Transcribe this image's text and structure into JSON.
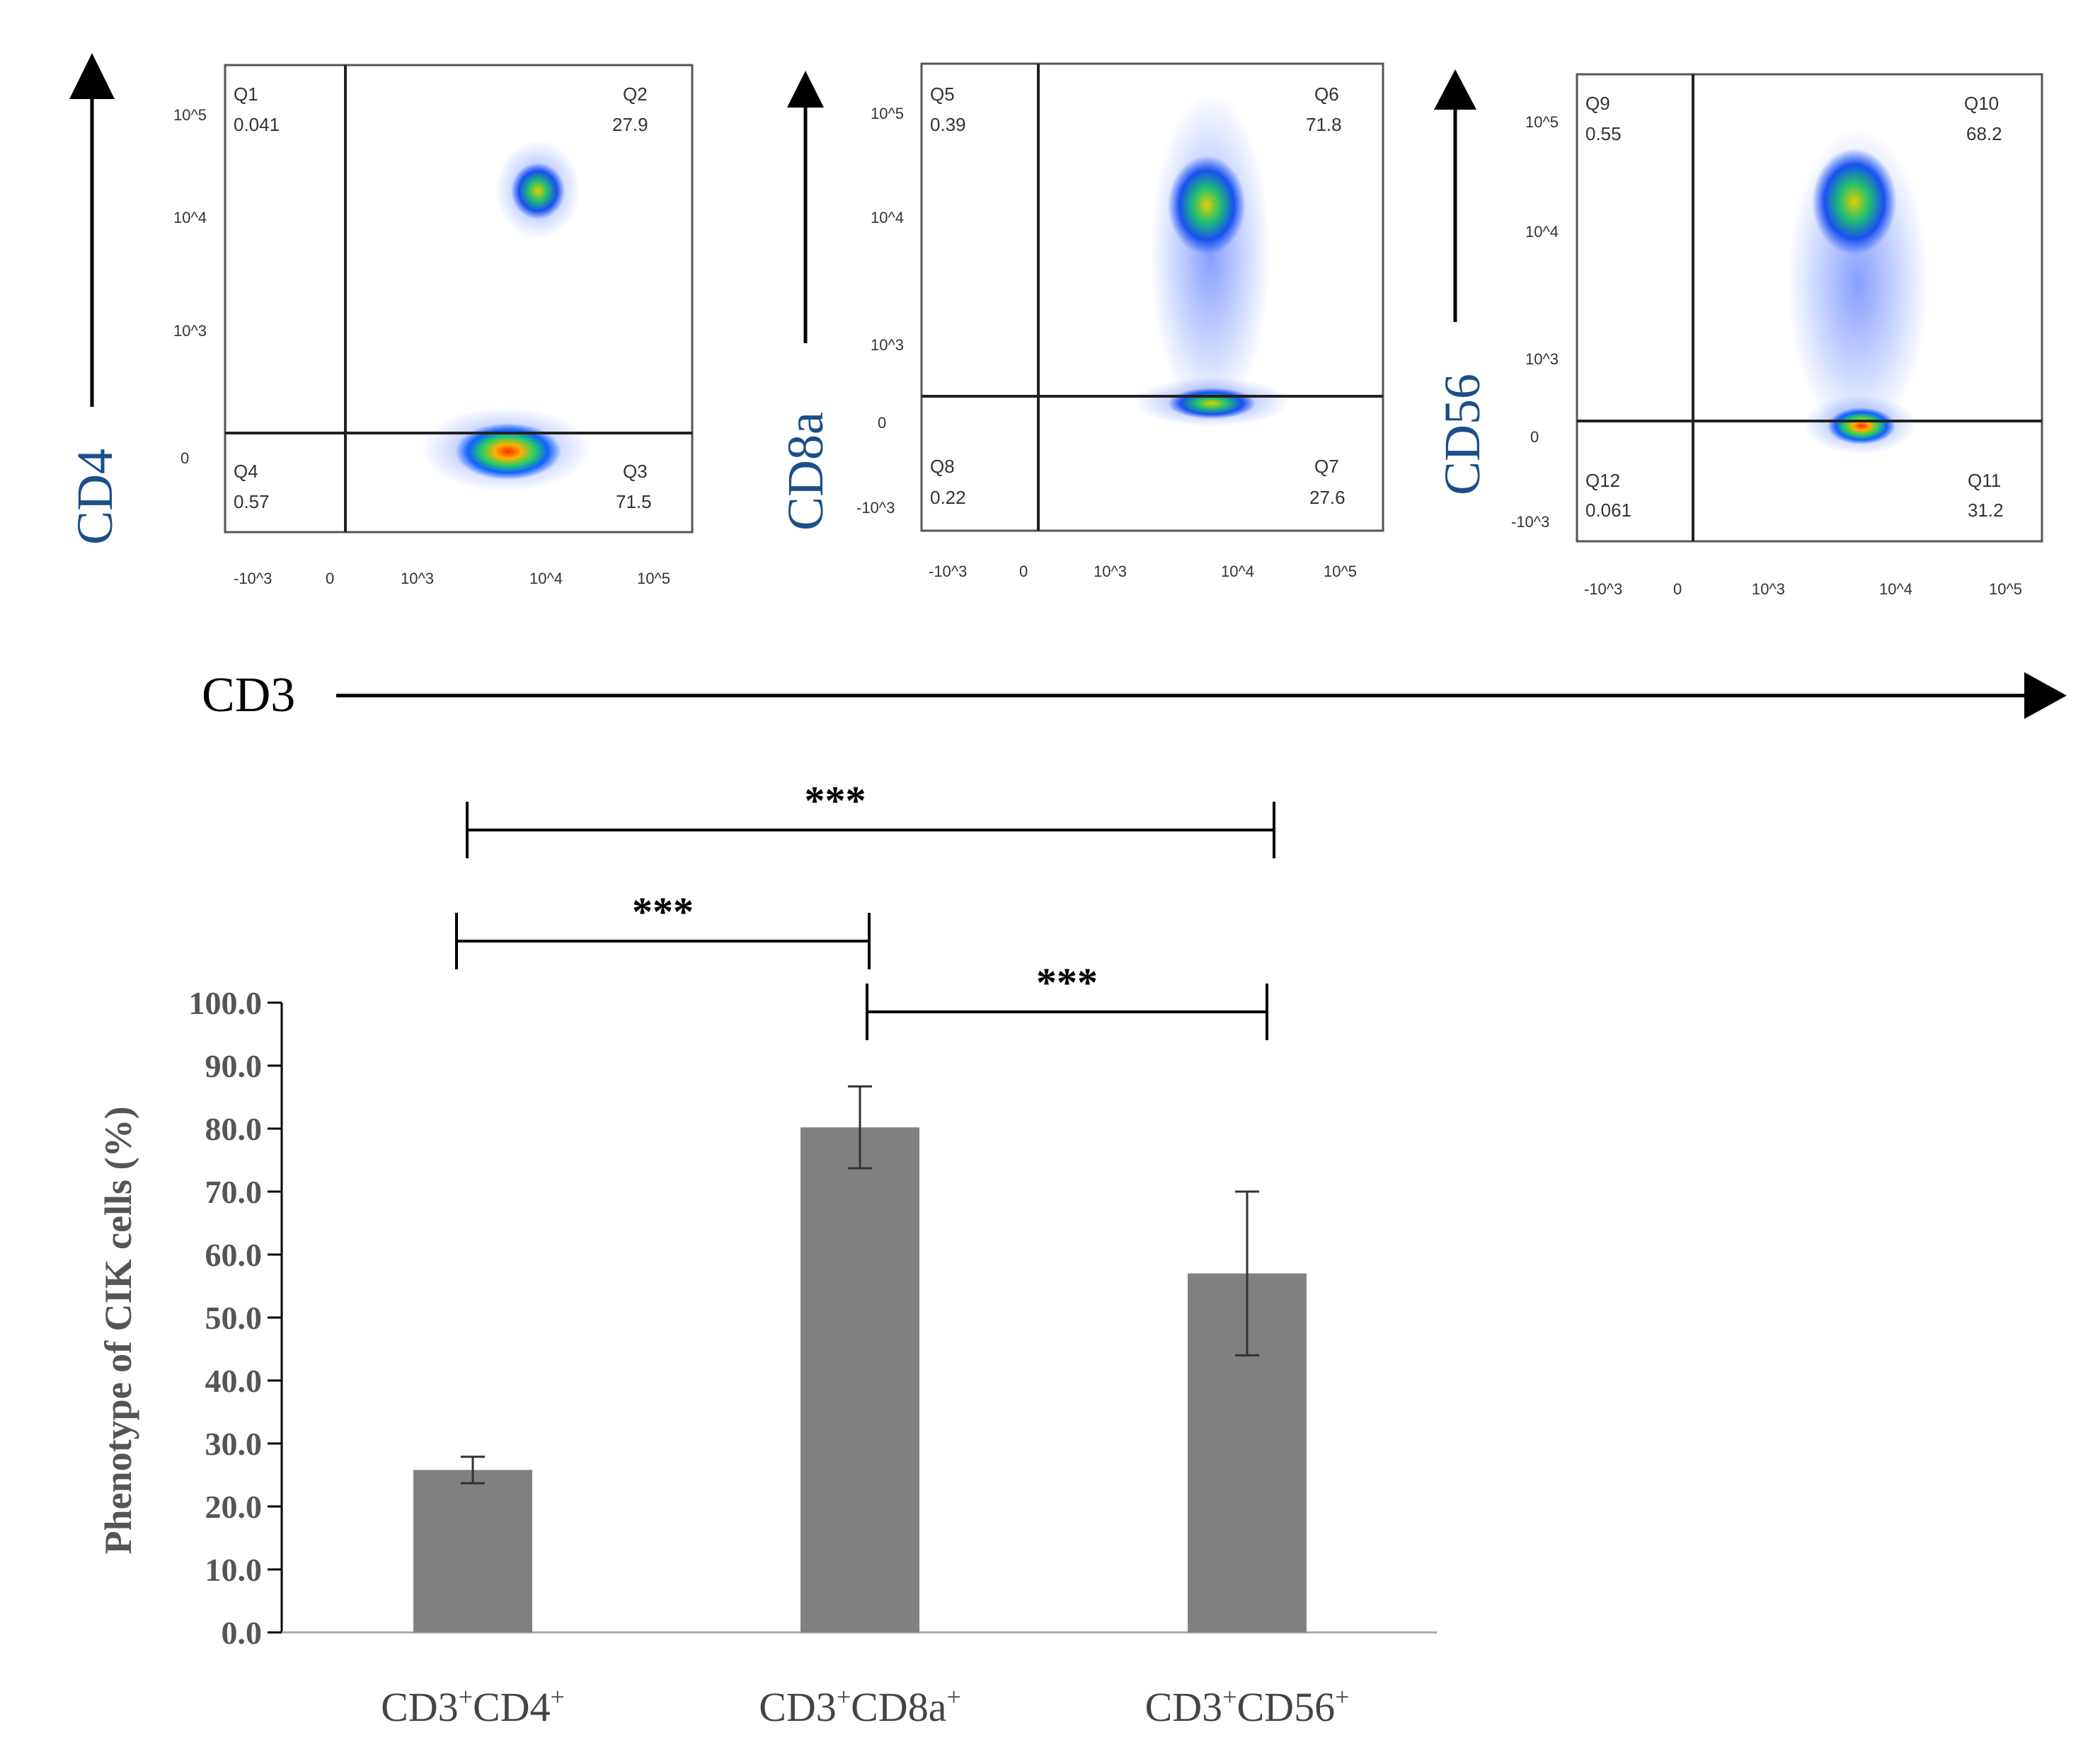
{
  "flow_panels": [
    {
      "y_marker": "CD4",
      "quadrants": [
        {
          "label": "Q1",
          "value": "0.041"
        },
        {
          "label": "Q2",
          "value": "27.9"
        },
        {
          "label": "Q3",
          "value": "71.5"
        },
        {
          "label": "Q4",
          "value": "0.57"
        }
      ],
      "x_ticks": [
        "-10^3",
        "0",
        "10^3",
        "10^4",
        "10^5"
      ],
      "y_ticks": [
        "10^5",
        "10^4",
        "10^3",
        "0"
      ]
    },
    {
      "y_marker": "CD8a",
      "quadrants": [
        {
          "label": "Q5",
          "value": "0.39"
        },
        {
          "label": "Q6",
          "value": "71.8"
        },
        {
          "label": "Q7",
          "value": "27.6"
        },
        {
          "label": "Q8",
          "value": "0.22"
        }
      ],
      "x_ticks": [
        "-10^3",
        "0",
        "10^3",
        "10^4",
        "10^5"
      ],
      "y_ticks": [
        "10^5",
        "10^4",
        "10^3",
        "0",
        "-10^3"
      ]
    },
    {
      "y_marker": "CD56",
      "quadrants": [
        {
          "label": "Q9",
          "value": "0.55"
        },
        {
          "label": "Q10",
          "value": "68.2"
        },
        {
          "label": "Q11",
          "value": "31.2"
        },
        {
          "label": "Q12",
          "value": "0.061"
        }
      ],
      "x_ticks": [
        "-10^3",
        "0",
        "10^3",
        "10^4",
        "10^5"
      ],
      "y_ticks": [
        "10^5",
        "10^4",
        "10^3",
        "0",
        "-10^3"
      ]
    }
  ],
  "x_marker": "CD3",
  "chart_data": {
    "type": "bar",
    "title": "",
    "categories": [
      "CD3+CD4+",
      "CD3+CD8a+",
      "CD3+CD56+"
    ],
    "category_parts": [
      {
        "a": "CD3",
        "b": "CD4"
      },
      {
        "a": "CD3",
        "b": "CD8a"
      },
      {
        "a": "CD3",
        "b": "CD56"
      }
    ],
    "values": [
      25.8,
      80.2,
      57.0
    ],
    "errors": [
      2.1,
      6.5,
      13.0
    ],
    "xlabel": "",
    "ylabel": "Phenotype  of  CIK  cells (%)",
    "ylim": [
      0,
      100
    ],
    "yticks": [
      "0.0",
      "10.0",
      "20.0",
      "30.0",
      "40.0",
      "50.0",
      "60.0",
      "70.0",
      "80.0",
      "90.0",
      "100.0"
    ],
    "bar_color": "#808080",
    "significance": [
      {
        "from": 0,
        "to": 2,
        "label": "***"
      },
      {
        "from": 0,
        "to": 1,
        "label": "***"
      },
      {
        "from": 1,
        "to": 2,
        "label": "***"
      }
    ]
  }
}
